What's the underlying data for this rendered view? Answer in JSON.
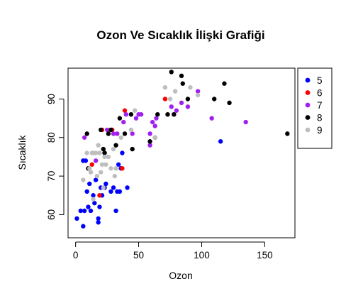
{
  "chart_data": {
    "type": "scatter",
    "title": "Ozon Ve Sıcaklık İlişki Grafiği",
    "xlabel": "Ozon",
    "ylabel": "Sıcaklık",
    "xlim": [
      -6,
      174
    ],
    "ylim": [
      54,
      98
    ],
    "x_ticks": [
      0,
      50,
      100,
      150
    ],
    "y_ticks": [
      60,
      70,
      80,
      90
    ],
    "grid": false,
    "legend_position": "top-right",
    "colors": {
      "5": "#0000ff",
      "6": "#ff0000",
      "7": "#a020f0",
      "8": "#000000",
      "9": "#bebebe"
    },
    "legend": [
      {
        "label": "5",
        "color": "#0000ff"
      },
      {
        "label": "6",
        "color": "#ff0000"
      },
      {
        "label": "7",
        "color": "#a020f0"
      },
      {
        "label": "8",
        "color": "#000000"
      },
      {
        "label": "9",
        "color": "#bebebe"
      }
    ],
    "series": [
      {
        "name": "5",
        "color": "#0000ff",
        "points": [
          [
            1,
            59
          ],
          [
            4,
            61
          ],
          [
            6,
            57
          ],
          [
            7,
            61
          ],
          [
            8,
            74
          ],
          [
            9,
            66
          ],
          [
            10,
            62
          ],
          [
            11,
            68
          ],
          [
            12,
            61
          ],
          [
            14,
            65
          ],
          [
            15,
            63
          ],
          [
            16,
            69
          ],
          [
            18,
            58
          ],
          [
            18,
            59
          ],
          [
            19,
            62
          ],
          [
            20,
            67
          ],
          [
            21,
            65
          ],
          [
            23,
            67
          ],
          [
            24,
            68
          ],
          [
            28,
            66
          ],
          [
            30,
            67
          ],
          [
            32,
            61
          ],
          [
            33,
            66
          ],
          [
            34,
            73
          ],
          [
            35,
            66
          ],
          [
            36,
            72
          ],
          [
            37,
            76
          ],
          [
            41,
            67
          ],
          [
            115,
            79
          ],
          [
            6,
            74
          ]
        ]
      },
      {
        "name": "6",
        "color": "#ff0000",
        "points": [
          [
            13,
            73
          ],
          [
            19,
            65
          ],
          [
            21,
            82
          ],
          [
            28,
            82
          ],
          [
            37,
            72
          ],
          [
            39,
            87
          ],
          [
            71,
            90
          ],
          [
            29,
            82
          ]
        ]
      },
      {
        "name": "7",
        "color": "#a020f0",
        "points": [
          [
            7,
            80
          ],
          [
            16,
            74
          ],
          [
            23,
            76
          ],
          [
            25,
            82
          ],
          [
            30,
            81
          ],
          [
            33,
            81
          ],
          [
            38,
            84
          ],
          [
            40,
            86
          ],
          [
            45,
            81
          ],
          [
            48,
            85
          ],
          [
            50,
            86
          ],
          [
            52,
            86
          ],
          [
            59,
            81
          ],
          [
            61,
            84
          ],
          [
            63,
            83
          ],
          [
            64,
            85
          ],
          [
            76,
            88
          ],
          [
            78,
            86
          ],
          [
            80,
            87
          ],
          [
            84,
            89
          ],
          [
            89,
            88
          ],
          [
            97,
            92
          ],
          [
            108,
            85
          ],
          [
            135,
            84
          ],
          [
            59,
            78
          ]
        ]
      },
      {
        "name": "8",
        "color": "#000000",
        "points": [
          [
            9,
            81
          ],
          [
            10,
            72
          ],
          [
            20,
            82
          ],
          [
            22,
            77
          ],
          [
            23,
            76
          ],
          [
            26,
            81
          ],
          [
            28,
            82
          ],
          [
            32,
            78
          ],
          [
            35,
            85
          ],
          [
            39,
            81
          ],
          [
            44,
            86
          ],
          [
            45,
            77
          ],
          [
            59,
            79
          ],
          [
            63,
            80
          ],
          [
            65,
            86
          ],
          [
            73,
            86
          ],
          [
            76,
            97
          ],
          [
            78,
            86
          ],
          [
            84,
            96
          ],
          [
            85,
            94
          ],
          [
            89,
            90
          ],
          [
            110,
            90
          ],
          [
            118,
            94
          ],
          [
            122,
            89
          ],
          [
            168,
            81
          ]
        ]
      },
      {
        "name": "9",
        "color": "#bebebe",
        "points": [
          [
            6,
            69
          ],
          [
            9,
            76
          ],
          [
            11,
            72
          ],
          [
            12,
            71
          ],
          [
            13,
            76
          ],
          [
            14,
            64
          ],
          [
            16,
            76
          ],
          [
            17,
            70
          ],
          [
            18,
            78
          ],
          [
            19,
            76
          ],
          [
            20,
            71
          ],
          [
            21,
            73
          ],
          [
            22,
            67
          ],
          [
            23,
            75
          ],
          [
            24,
            73
          ],
          [
            26,
            75
          ],
          [
            28,
            72
          ],
          [
            30,
            77
          ],
          [
            31,
            70
          ],
          [
            32,
            72
          ],
          [
            36,
            80
          ],
          [
            44,
            82
          ],
          [
            47,
            87
          ],
          [
            63,
            80
          ],
          [
            71,
            93
          ],
          [
            75,
            90
          ],
          [
            79,
            92
          ],
          [
            91,
            93
          ],
          [
            97,
            91
          ],
          [
            14,
            76
          ]
        ]
      }
    ]
  }
}
